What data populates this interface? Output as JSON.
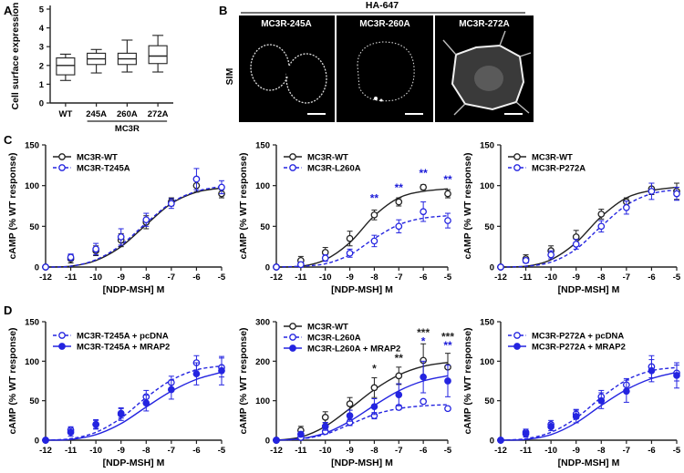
{
  "panel_labels": [
    "A",
    "B",
    "C",
    "D"
  ],
  "colors": {
    "black": "#222222",
    "blue": "#2424e0",
    "blue_star": "#1a1ad8"
  },
  "panel_b": {
    "header": "HA-647",
    "side_label": "SIM",
    "images": [
      {
        "label": "MC3R-245A",
        "shape": "two-lobe-cell"
      },
      {
        "label": "MC3R-260A",
        "shape": "round-cell"
      },
      {
        "label": "MC3R-272A",
        "shape": "bright-cell"
      }
    ]
  },
  "chart_data": [
    {
      "id": "A",
      "type": "boxplot",
      "ylabel": "Cell surface expression",
      "xlabel": "MC3R",
      "categories": [
        "WT",
        "245A",
        "260A",
        "272A"
      ],
      "ylim": [
        0,
        5
      ],
      "yticks": [
        0,
        1,
        2,
        3,
        4,
        5
      ],
      "boxes": [
        {
          "min": 1.2,
          "q1": 1.5,
          "median": 2.0,
          "q3": 2.4,
          "max": 2.6
        },
        {
          "min": 1.6,
          "q1": 2.05,
          "median": 2.35,
          "q3": 2.65,
          "max": 2.85
        },
        {
          "min": 1.65,
          "q1": 2.05,
          "median": 2.35,
          "q3": 2.65,
          "max": 3.35
        },
        {
          "min": 1.65,
          "q1": 2.1,
          "median": 2.5,
          "q3": 3.05,
          "max": 3.6
        }
      ]
    },
    {
      "id": "C1",
      "type": "line",
      "xlabel": "[NDP-MSH] M",
      "ylabel": "cAMP (% WT response)",
      "xlim": [
        -12,
        -5
      ],
      "ylim": [
        0,
        150
      ],
      "xticks": [
        -12,
        -11,
        -10,
        -9,
        -8,
        -7,
        -6,
        -5
      ],
      "yticks": [
        0,
        50,
        100,
        150
      ],
      "x": [
        -12,
        -11,
        -10,
        -9,
        -8,
        -7,
        -6,
        -5
      ],
      "series": [
        {
          "name": "MC3R-WT",
          "color": "#222222",
          "style": "solid",
          "marker": "open",
          "y": [
            0,
            10,
            20,
            33,
            55,
            80,
            100,
            90
          ],
          "err": [
            2,
            5,
            6,
            8,
            8,
            5,
            8,
            5
          ],
          "fit": [
            0,
            1,
            8,
            25,
            52,
            78,
            92,
            97
          ]
        },
        {
          "name": "MC3R-T245A",
          "color": "#2424e0",
          "style": "dashed",
          "marker": "open",
          "y": [
            0,
            12,
            22,
            37,
            58,
            78,
            108,
            98
          ],
          "err": [
            2,
            4,
            7,
            10,
            8,
            6,
            13,
            8
          ],
          "fit": [
            0,
            1,
            9,
            27,
            54,
            79,
            93,
            99
          ]
        }
      ],
      "annotations": []
    },
    {
      "id": "C2",
      "type": "line",
      "xlabel": "[NDP-MSH] M",
      "ylabel": "cAMP (% WT response)",
      "xlim": [
        -12,
        -5
      ],
      "ylim": [
        0,
        150
      ],
      "xticks": [
        -12,
        -11,
        -10,
        -9,
        -8,
        -7,
        -6,
        -5
      ],
      "yticks": [
        0,
        50,
        100,
        150
      ],
      "x": [
        -12,
        -11,
        -10,
        -9,
        -8,
        -7,
        -6,
        -5
      ],
      "series": [
        {
          "name": "MC3R-WT",
          "color": "#222222",
          "style": "solid",
          "marker": "open",
          "y": [
            0,
            8,
            18,
            35,
            64,
            80,
            98,
            90
          ],
          "err": [
            2,
            5,
            6,
            9,
            6,
            5,
            3,
            5
          ],
          "fit": [
            0,
            1,
            9,
            30,
            63,
            85,
            93,
            96
          ]
        },
        {
          "name": "MC3R-L260A",
          "color": "#2424e0",
          "style": "dashed",
          "marker": "open",
          "y": [
            0,
            3,
            11,
            17,
            32,
            50,
            68,
            57
          ],
          "err": [
            1,
            3,
            4,
            5,
            7,
            8,
            12,
            9
          ],
          "fit": [
            0,
            1,
            4,
            15,
            35,
            52,
            60,
            63
          ]
        }
      ],
      "annotations": [
        {
          "x": -8,
          "y": 80,
          "text": "**",
          "color": "#1a1ad8"
        },
        {
          "x": -7,
          "y": 93,
          "text": "**",
          "color": "#1a1ad8"
        },
        {
          "x": -6,
          "y": 111,
          "text": "**",
          "color": "#1a1ad8"
        },
        {
          "x": -5,
          "y": 103,
          "text": "**",
          "color": "#1a1ad8"
        }
      ]
    },
    {
      "id": "C3",
      "type": "line",
      "xlabel": "[NDP-MSH] M",
      "ylabel": "cAMP (% WT response)",
      "xlim": [
        -12,
        -5
      ],
      "ylim": [
        0,
        150
      ],
      "xticks": [
        -12,
        -11,
        -10,
        -9,
        -8,
        -7,
        -6,
        -5
      ],
      "yticks": [
        0,
        50,
        100,
        150
      ],
      "x": [
        -12,
        -11,
        -10,
        -9,
        -8,
        -7,
        -6,
        -5
      ],
      "series": [
        {
          "name": "MC3R-WT",
          "color": "#222222",
          "style": "solid",
          "marker": "open",
          "y": [
            0,
            10,
            20,
            37,
            65,
            80,
            96,
            93
          ],
          "err": [
            2,
            5,
            6,
            8,
            6,
            5,
            7,
            10
          ],
          "fit": [
            0,
            1,
            9,
            30,
            62,
            85,
            94,
            98
          ]
        },
        {
          "name": "MC3R-P272A",
          "color": "#2424e0",
          "style": "dashed",
          "marker": "open",
          "y": [
            0,
            8,
            15,
            28,
            50,
            73,
            93,
            90
          ],
          "err": [
            2,
            3,
            5,
            6,
            7,
            8,
            10,
            8
          ],
          "fit": [
            0,
            1,
            6,
            22,
            50,
            76,
            90,
            95
          ]
        }
      ],
      "annotations": []
    },
    {
      "id": "D1",
      "type": "line",
      "xlabel": "[NDP-MSH] M",
      "ylabel": "cAMP (% WT response)",
      "xlim": [
        -12,
        -5
      ],
      "ylim": [
        0,
        150
      ],
      "xticks": [
        -12,
        -11,
        -10,
        -9,
        -8,
        -7,
        -6,
        -5
      ],
      "yticks": [
        0,
        50,
        100,
        150
      ],
      "x": [
        -12,
        -11,
        -10,
        -9,
        -8,
        -7,
        -6,
        -5
      ],
      "series": [
        {
          "name": "MC3R-T245A + pcDNA",
          "color": "#2424e0",
          "style": "dashed",
          "marker": "open",
          "y": [
            0,
            13,
            20,
            34,
            55,
            73,
            98,
            92
          ],
          "err": [
            2,
            4,
            5,
            6,
            8,
            8,
            9,
            12
          ],
          "fit": [
            0,
            2,
            10,
            28,
            54,
            76,
            89,
            94
          ]
        },
        {
          "name": "MC3R-T245A + MRAP2",
          "color": "#2424e0",
          "style": "solid",
          "marker": "filled",
          "y": [
            0,
            10,
            20,
            33,
            47,
            64,
            84,
            88
          ],
          "err": [
            2,
            5,
            6,
            8,
            10,
            12,
            14,
            18
          ],
          "fit": [
            0,
            1,
            7,
            21,
            42,
            62,
            77,
            86
          ]
        }
      ],
      "annotations": []
    },
    {
      "id": "D2",
      "type": "line",
      "xlabel": "[NDP-MSH] M",
      "ylabel": "cAMP (% WT response)",
      "xlim": [
        -12,
        -5
      ],
      "ylim": [
        0,
        300
      ],
      "xticks": [
        -12,
        -11,
        -10,
        -9,
        -8,
        -7,
        -6,
        -5
      ],
      "yticks": [
        0,
        100,
        200,
        300
      ],
      "x": [
        -12,
        -11,
        -10,
        -9,
        -8,
        -7,
        -6,
        -5
      ],
      "series": [
        {
          "name": "MC3R-WT",
          "color": "#222222",
          "style": "solid",
          "marker": "open",
          "y": [
            0,
            25,
            58,
            92,
            133,
            163,
            202,
            185
          ],
          "err": [
            4,
            10,
            14,
            16,
            25,
            22,
            42,
            35
          ],
          "fit": [
            0,
            8,
            35,
            80,
            128,
            165,
            187,
            197
          ]
        },
        {
          "name": "MC3R-L260A",
          "color": "#2424e0",
          "style": "dashed",
          "marker": "open",
          "y": [
            0,
            7,
            22,
            45,
            62,
            83,
            98,
            80
          ],
          "err": [
            2,
            4,
            6,
            8,
            8,
            6,
            4,
            5
          ],
          "fit": [
            0,
            3,
            15,
            40,
            65,
            80,
            87,
            90
          ]
        },
        {
          "name": "MC3R-L260A + MRAP2",
          "color": "#2424e0",
          "style": "solid",
          "marker": "filled",
          "y": [
            0,
            15,
            35,
            62,
            85,
            115,
            160,
            150
          ],
          "err": [
            3,
            6,
            10,
            14,
            20,
            28,
            40,
            40
          ],
          "fit": [
            0,
            4,
            18,
            48,
            88,
            125,
            150,
            163
          ]
        }
      ],
      "annotations": [
        {
          "x": -8,
          "y": 172,
          "text": "*",
          "color": "#222222"
        },
        {
          "x": -7,
          "y": 198,
          "text": "**",
          "color": "#222222"
        },
        {
          "x": -6,
          "y": 263,
          "text": "***",
          "color": "#222222"
        },
        {
          "x": -6,
          "y": 241,
          "text": "*",
          "color": "#1a1ad8"
        },
        {
          "x": -5,
          "y": 253,
          "text": "***",
          "color": "#222222"
        },
        {
          "x": -5,
          "y": 231,
          "text": "**",
          "color": "#1a1ad8"
        }
      ]
    },
    {
      "id": "D3",
      "type": "line",
      "xlabel": "[NDP-MSH] M",
      "ylabel": "cAMP (% WT response)",
      "xlim": [
        -12,
        -5
      ],
      "ylim": [
        0,
        150
      ],
      "xticks": [
        -12,
        -11,
        -10,
        -9,
        -8,
        -7,
        -6,
        -5
      ],
      "yticks": [
        0,
        50,
        100,
        150
      ],
      "x": [
        -12,
        -11,
        -10,
        -9,
        -8,
        -7,
        -6,
        -5
      ],
      "series": [
        {
          "name": "MC3R-P272A + pcDNA",
          "color": "#2424e0",
          "style": "dashed",
          "marker": "open",
          "y": [
            0,
            10,
            20,
            33,
            55,
            70,
            93,
            85
          ],
          "err": [
            2,
            4,
            5,
            6,
            8,
            8,
            14,
            10
          ],
          "fit": [
            0,
            2,
            10,
            28,
            54,
            76,
            88,
            92
          ]
        },
        {
          "name": "MC3R-P272A + MRAP2",
          "color": "#2424e0",
          "style": "solid",
          "marker": "filled",
          "y": [
            0,
            8,
            17,
            30,
            50,
            62,
            88,
            82
          ],
          "err": [
            2,
            4,
            5,
            8,
            10,
            14,
            14,
            16
          ],
          "fit": [
            0,
            1,
            7,
            22,
            44,
            64,
            78,
            86
          ]
        }
      ],
      "annotations": []
    }
  ]
}
